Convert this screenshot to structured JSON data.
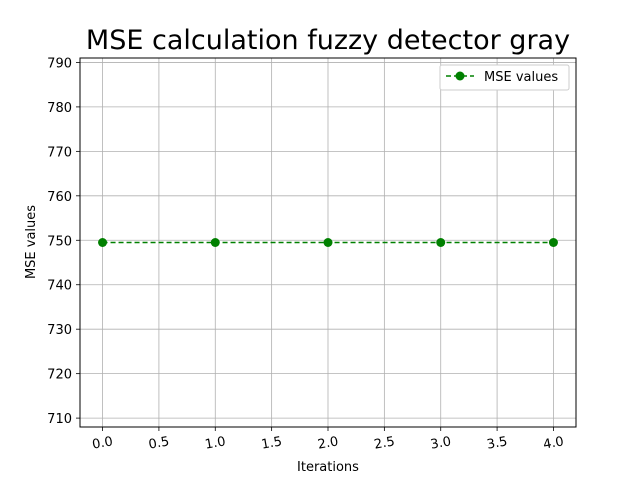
{
  "chart_data": {
    "type": "line",
    "title": "MSE calculation fuzzy detector gray",
    "xlabel": "Iterations",
    "ylabel": "MSE values",
    "x": [
      0,
      1,
      2,
      3,
      4
    ],
    "series": [
      {
        "name": "MSE values",
        "values": [
          749.5,
          749.5,
          749.5,
          749.5,
          749.5
        ]
      }
    ],
    "xlim": [
      -0.2,
      4.2
    ],
    "ylim": [
      708,
      791
    ],
    "xticks": [
      "0.0",
      "0.5",
      "1.0",
      "1.5",
      "2.0",
      "2.5",
      "3.0",
      "3.5",
      "4.0"
    ],
    "yticks": [
      "710",
      "720",
      "730",
      "740",
      "750",
      "760",
      "770",
      "780",
      "790"
    ],
    "grid": true,
    "legend_position": "top-right",
    "line_style": "dashed",
    "marker": "circle",
    "color": "#008000"
  }
}
